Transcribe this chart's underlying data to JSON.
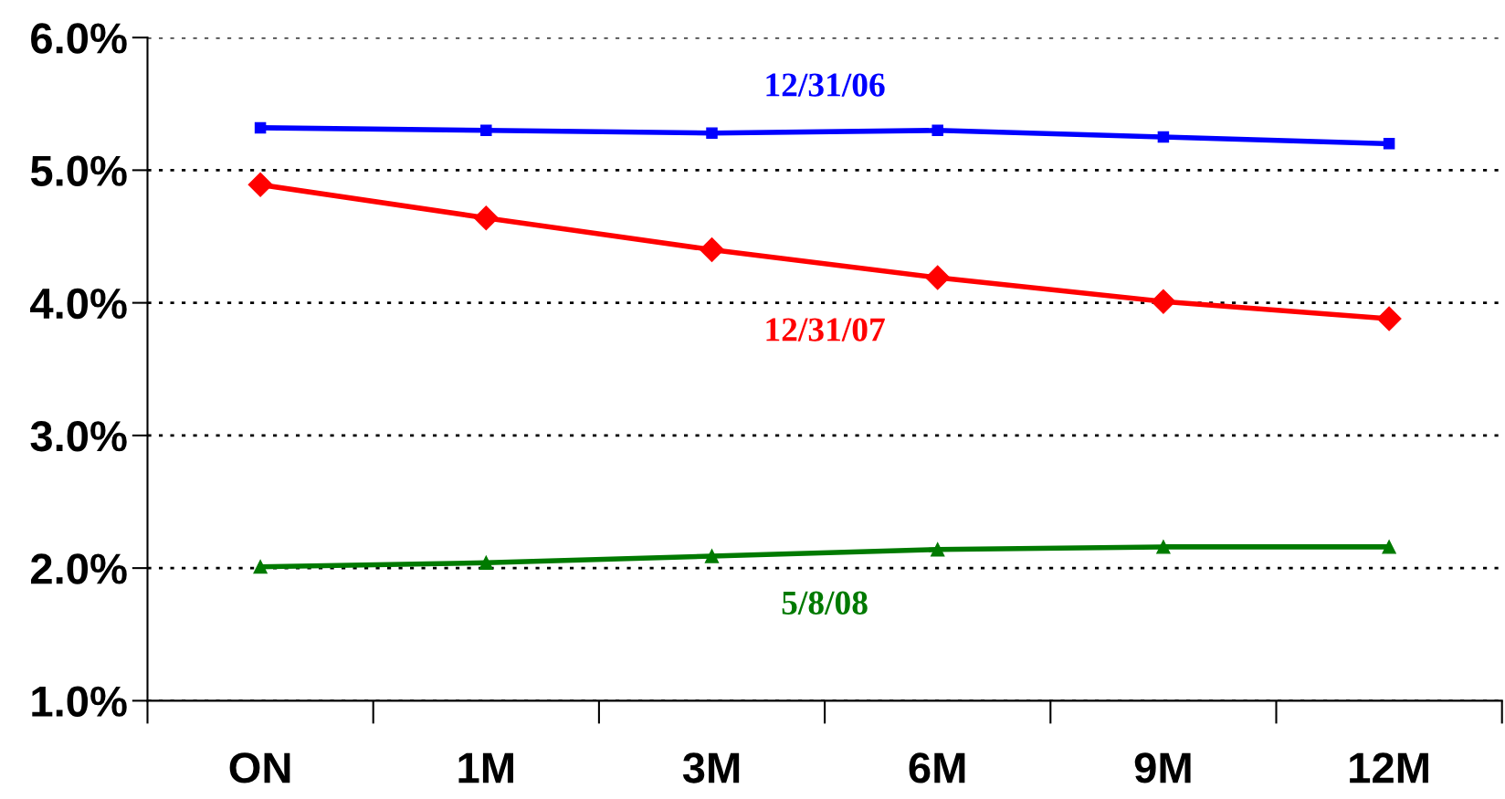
{
  "chart_data": {
    "type": "line",
    "categories": [
      "ON",
      "1M",
      "3M",
      "6M",
      "9M",
      "12M"
    ],
    "series": [
      {
        "name": "12/31/06",
        "color": "#0000ff",
        "marker": "square",
        "values": [
          5.32,
          5.3,
          5.28,
          5.3,
          5.25,
          5.2
        ]
      },
      {
        "name": "12/31/07",
        "color": "#ff0000",
        "marker": "diamond",
        "values": [
          4.89,
          4.64,
          4.4,
          4.19,
          4.01,
          3.88
        ]
      },
      {
        "name": "5/8/08",
        "color": "#007a00",
        "marker": "triangle",
        "values": [
          2.01,
          2.04,
          2.09,
          2.14,
          2.16,
          2.16
        ]
      }
    ],
    "ylim": [
      1,
      6
    ],
    "yticks": [
      {
        "value": 1,
        "label": "1.0%"
      },
      {
        "value": 2,
        "label": "2.0%"
      },
      {
        "value": 3,
        "label": "3.0%"
      },
      {
        "value": 4,
        "label": "4.0%"
      },
      {
        "value": 5,
        "label": "5.0%"
      },
      {
        "value": 6,
        "label": "6.0%"
      }
    ],
    "grid": "y",
    "legend": false,
    "line_style": "solid"
  }
}
